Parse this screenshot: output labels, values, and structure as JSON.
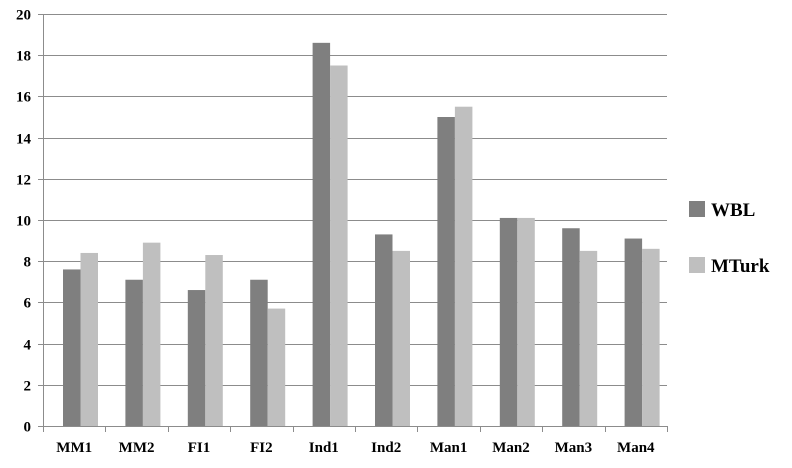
{
  "chart_data": {
    "type": "bar",
    "title": "",
    "xlabel": "",
    "ylabel": "",
    "categories": [
      "MM1",
      "MM2",
      "FI1",
      "FI2",
      "Ind1",
      "Ind2",
      "Man1",
      "Man2",
      "Man3",
      "Man4"
    ],
    "series": [
      {
        "name": "WBL",
        "color": "#7f7f7f",
        "values": [
          7.6,
          7.1,
          6.6,
          7.1,
          18.6,
          9.3,
          15.0,
          10.1,
          9.6,
          9.1
        ]
      },
      {
        "name": "MTurk",
        "color": "#bfbfbf",
        "values": [
          8.4,
          8.9,
          8.3,
          5.7,
          17.5,
          8.5,
          15.5,
          10.1,
          8.5,
          8.6
        ]
      }
    ],
    "ylim": [
      0,
      20
    ],
    "yticks": [
      0,
      2,
      4,
      6,
      8,
      10,
      12,
      14,
      16,
      18,
      20
    ],
    "grid": true,
    "legend_position": "right"
  }
}
